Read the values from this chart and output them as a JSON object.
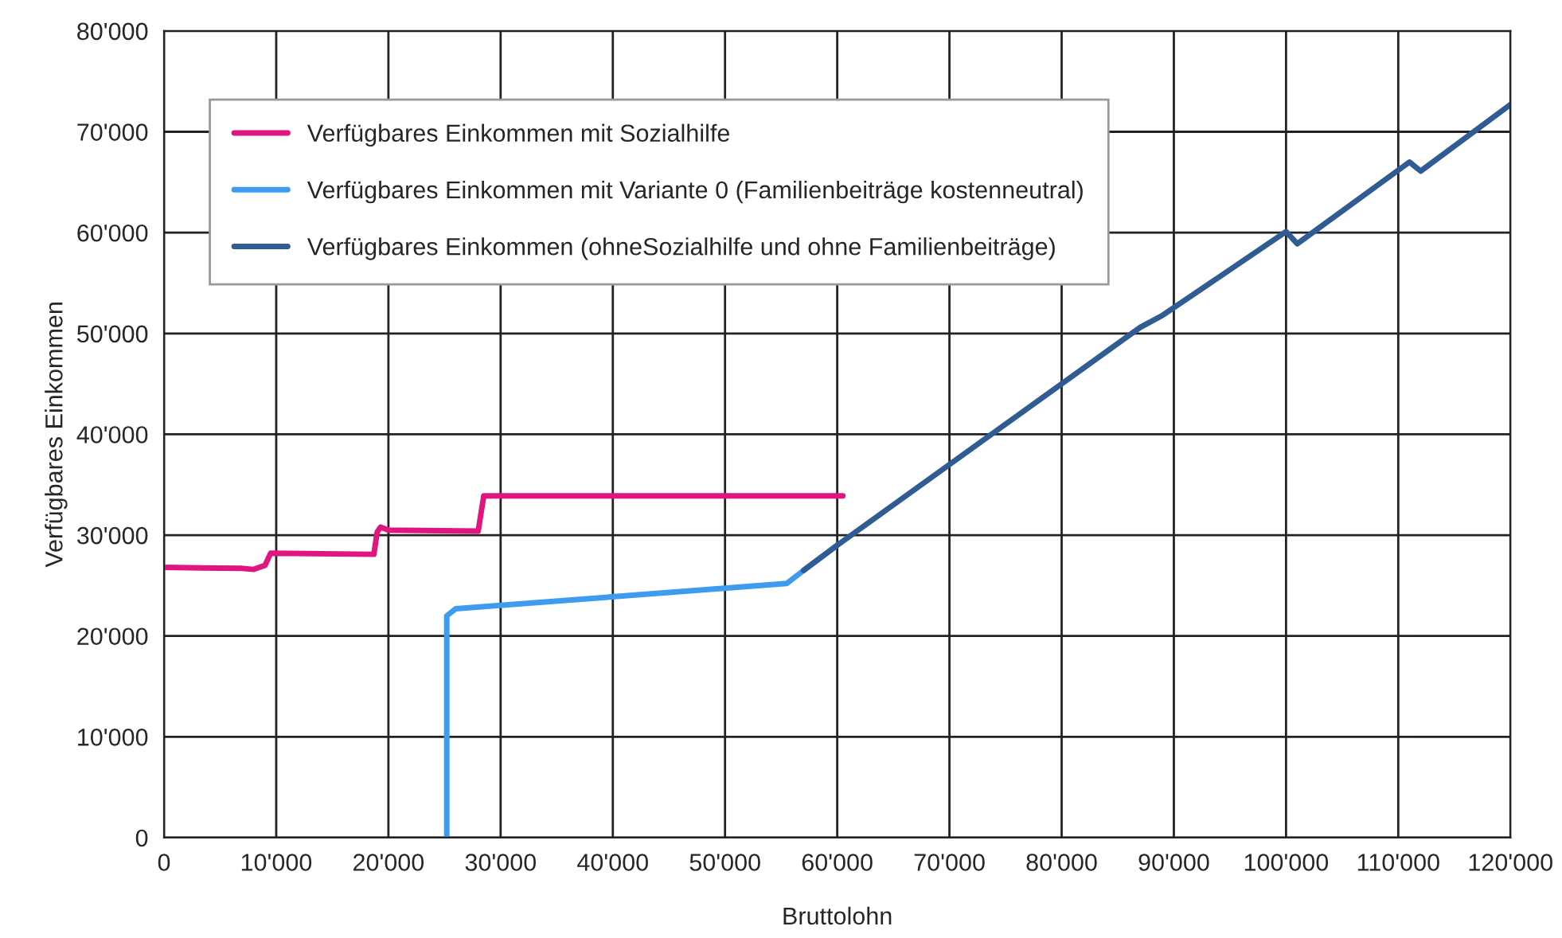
{
  "chart_data": {
    "type": "line",
    "xlabel": "Bruttolohn",
    "ylabel": "Verfügbares Einkommen",
    "xlim": [
      0,
      120000
    ],
    "ylim": [
      0,
      80000
    ],
    "xticks": [
      0,
      {
        "value": 10000,
        "label": "10'000"
      },
      {
        "value": 20000,
        "label": "20'000"
      },
      {
        "value": 30000,
        "label": "30'000"
      },
      {
        "value": 40000,
        "label": "40'000"
      },
      {
        "value": 50000,
        "label": "50'000"
      },
      {
        "value": 60000,
        "label": "60'000"
      },
      {
        "value": 70000,
        "label": "70'000"
      },
      {
        "value": 80000,
        "label": "80'000"
      },
      {
        "value": 90000,
        "label": "90'000"
      },
      {
        "value": 100000,
        "label": "100'000"
      },
      {
        "value": 110000,
        "label": "110'000"
      },
      {
        "value": 120000,
        "label": "120'000"
      }
    ],
    "yticks": [
      0,
      {
        "value": 10000,
        "label": "10'000"
      },
      {
        "value": 20000,
        "label": "20'000"
      },
      {
        "value": 30000,
        "label": "30'000"
      },
      {
        "value": 40000,
        "label": "40'000"
      },
      {
        "value": 50000,
        "label": "50'000"
      },
      {
        "value": 60000,
        "label": "60'000"
      },
      {
        "value": 70000,
        "label": "70'000"
      },
      {
        "value": 80000,
        "label": "80'000"
      }
    ],
    "grid": true,
    "legend": "top left",
    "marker": "none",
    "line_style": "solid",
    "series": [
      {
        "name": "Verfügbares Einkommen mit Sozialhilfe",
        "color": "#e0157f",
        "x": [
          0,
          7000,
          8000,
          9000,
          9500,
          18700,
          19000,
          19300,
          20000,
          28000,
          28500,
          60500
        ],
        "values": [
          26800,
          26700,
          26600,
          27000,
          28200,
          28100,
          30300,
          30800,
          30500,
          30400,
          33900,
          33900
        ]
      },
      {
        "name": "Verfügbares Einkommen mit Variante 0 (Familienbeiträge kostenneutral)",
        "color": "#3d9cf0",
        "x": [
          25200,
          25200,
          26000,
          55500,
          57000,
          60000
        ],
        "values": [
          0,
          22000,
          22700,
          25200,
          26500,
          29000
        ]
      },
      {
        "name": "Verfügbares Einkommen (ohneSozialhilfe und ohne Familienbeiträge)",
        "color": "#2e5c93",
        "x": [
          57000,
          60000,
          87000,
          89000,
          100000,
          101000,
          111000,
          112000,
          120000
        ],
        "values": [
          26500,
          29000,
          50600,
          51800,
          60100,
          58900,
          67000,
          66100,
          72700
        ]
      }
    ]
  }
}
